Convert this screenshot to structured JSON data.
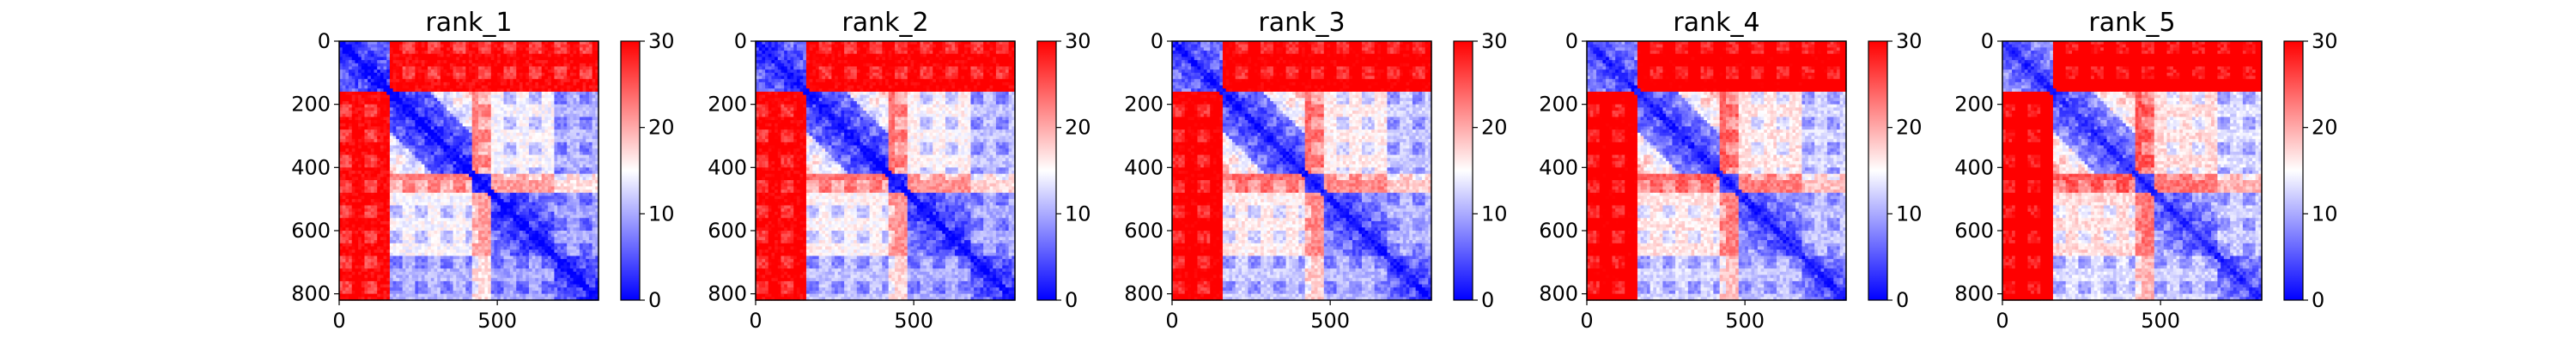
{
  "chart_data": [
    {
      "type": "heatmap",
      "title": "rank_1",
      "xlabel": "",
      "ylabel": "",
      "x_ticks": [
        "0",
        "500"
      ],
      "y_ticks": [
        "0",
        "200",
        "400",
        "600",
        "800"
      ],
      "colorbar_ticks": [
        "0",
        "10",
        "20",
        "30"
      ],
      "clim": [
        0,
        30
      ],
      "colormap": "bwr",
      "xlim": [
        0,
        820
      ],
      "ylim": [
        820,
        0
      ]
    },
    {
      "type": "heatmap",
      "title": "rank_2",
      "xlabel": "",
      "ylabel": "",
      "x_ticks": [
        "0",
        "500"
      ],
      "y_ticks": [
        "0",
        "200",
        "400",
        "600",
        "800"
      ],
      "colorbar_ticks": [
        "0",
        "10",
        "20",
        "30"
      ],
      "clim": [
        0,
        30
      ],
      "colormap": "bwr",
      "xlim": [
        0,
        820
      ],
      "ylim": [
        820,
        0
      ]
    },
    {
      "type": "heatmap",
      "title": "rank_3",
      "xlabel": "",
      "ylabel": "",
      "x_ticks": [
        "0",
        "500"
      ],
      "y_ticks": [
        "0",
        "200",
        "400",
        "600",
        "800"
      ],
      "colorbar_ticks": [
        "0",
        "10",
        "20",
        "30"
      ],
      "clim": [
        0,
        30
      ],
      "colormap": "bwr",
      "xlim": [
        0,
        820
      ],
      "ylim": [
        820,
        0
      ]
    },
    {
      "type": "heatmap",
      "title": "rank_4",
      "xlabel": "",
      "ylabel": "",
      "x_ticks": [
        "0",
        "500"
      ],
      "y_ticks": [
        "0",
        "200",
        "400",
        "600",
        "800"
      ],
      "colorbar_ticks": [
        "0",
        "10",
        "20",
        "30"
      ],
      "clim": [
        0,
        30
      ],
      "colormap": "bwr",
      "xlim": [
        0,
        820
      ],
      "ylim": [
        820,
        0
      ]
    },
    {
      "type": "heatmap",
      "title": "rank_5",
      "xlabel": "",
      "ylabel": "",
      "x_ticks": [
        "0",
        "500"
      ],
      "y_ticks": [
        "0",
        "200",
        "400",
        "600",
        "800"
      ],
      "colorbar_ticks": [
        "0",
        "10",
        "20",
        "30"
      ],
      "clim": [
        0,
        30
      ],
      "colormap": "bwr",
      "xlim": [
        0,
        820
      ],
      "ylim": [
        820,
        0
      ]
    }
  ],
  "colors": {
    "low": "#0000ff",
    "mid": "#ffffff",
    "high": "#ff0000"
  }
}
